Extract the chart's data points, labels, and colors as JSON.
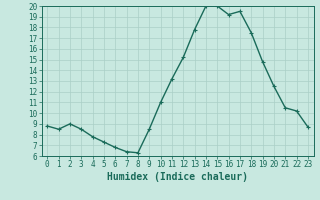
{
  "x": [
    0,
    1,
    2,
    3,
    4,
    5,
    6,
    7,
    8,
    9,
    10,
    11,
    12,
    13,
    14,
    15,
    16,
    17,
    18,
    19,
    20,
    21,
    22,
    23
  ],
  "y": [
    8.8,
    8.5,
    9.0,
    8.5,
    7.8,
    7.3,
    6.8,
    6.4,
    6.3,
    8.5,
    11.0,
    13.2,
    15.2,
    17.8,
    20.0,
    20.0,
    19.2,
    19.5,
    17.5,
    14.8,
    12.5,
    10.5,
    10.2,
    8.7
  ],
  "line_color": "#1a6b5a",
  "marker": "+",
  "marker_size": 3,
  "marker_linewidth": 0.8,
  "bg_color": "#c8e8e0",
  "grid_color": "#aacfc7",
  "xlabel": "Humidex (Indice chaleur)",
  "xlabel_fontsize": 7,
  "ylim": [
    6,
    20
  ],
  "xlim": [
    -0.5,
    23.5
  ],
  "yticks": [
    6,
    7,
    8,
    9,
    10,
    11,
    12,
    13,
    14,
    15,
    16,
    17,
    18,
    19,
    20
  ],
  "xticks": [
    0,
    1,
    2,
    3,
    4,
    5,
    6,
    7,
    8,
    9,
    10,
    11,
    12,
    13,
    14,
    15,
    16,
    17,
    18,
    19,
    20,
    21,
    22,
    23
  ],
  "tick_fontsize": 5.5,
  "linewidth": 1.0,
  "spine_color": "#1a6b5a",
  "text_color": "#1a6b5a"
}
